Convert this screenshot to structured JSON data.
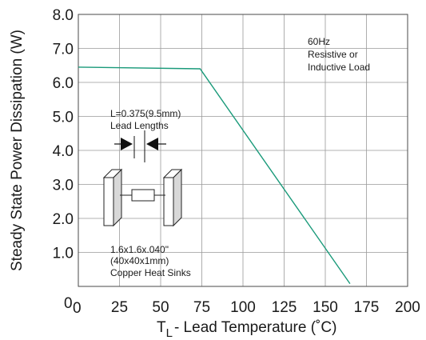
{
  "chart_data": {
    "type": "line",
    "xlabel_main": "T",
    "xlabel_sub": "L",
    "xlabel_rest": "- Lead Temperature (˚C)",
    "ylabel": "Steady State Power Dissipation (W)",
    "xlim": [
      0,
      200
    ],
    "ylim": [
      0,
      8
    ],
    "x_ticks": [
      {
        "value": 25,
        "label": "25"
      },
      {
        "value": 50,
        "label": "50"
      },
      {
        "value": 75,
        "label": "75"
      },
      {
        "value": 100,
        "label": "100"
      },
      {
        "value": 125,
        "label": "125"
      },
      {
        "value": 150,
        "label": "150"
      },
      {
        "value": 175,
        "label": "175"
      },
      {
        "value": 200,
        "label": "200"
      }
    ],
    "y_ticks": [
      {
        "value": 1,
        "label": "1.0"
      },
      {
        "value": 2,
        "label": "2.0"
      },
      {
        "value": 3,
        "label": "3.0"
      },
      {
        "value": 4,
        "label": "4.0"
      },
      {
        "value": 5,
        "label": "5.0"
      },
      {
        "value": 6,
        "label": "6.0"
      },
      {
        "value": 7,
        "label": "7.0"
      },
      {
        "value": 8,
        "label": "8.0"
      }
    ],
    "origin_y_label": "0",
    "origin_x_label": "0",
    "grid": true,
    "series": [
      {
        "color": "#1a9a7a",
        "points": [
          [
            0,
            6.45
          ],
          [
            74,
            6.4
          ],
          [
            165,
            0.08
          ]
        ]
      }
    ],
    "annotations": {
      "load": [
        "60Hz",
        "Resistive or",
        "Inductive Load"
      ],
      "lead": [
        "L=0.375(9.5mm)",
        "Lead Lengths"
      ],
      "sink": [
        "1.6x1.6x.040\"",
        "(40x40x1mm)",
        "Copper Heat Sinks"
      ]
    }
  }
}
